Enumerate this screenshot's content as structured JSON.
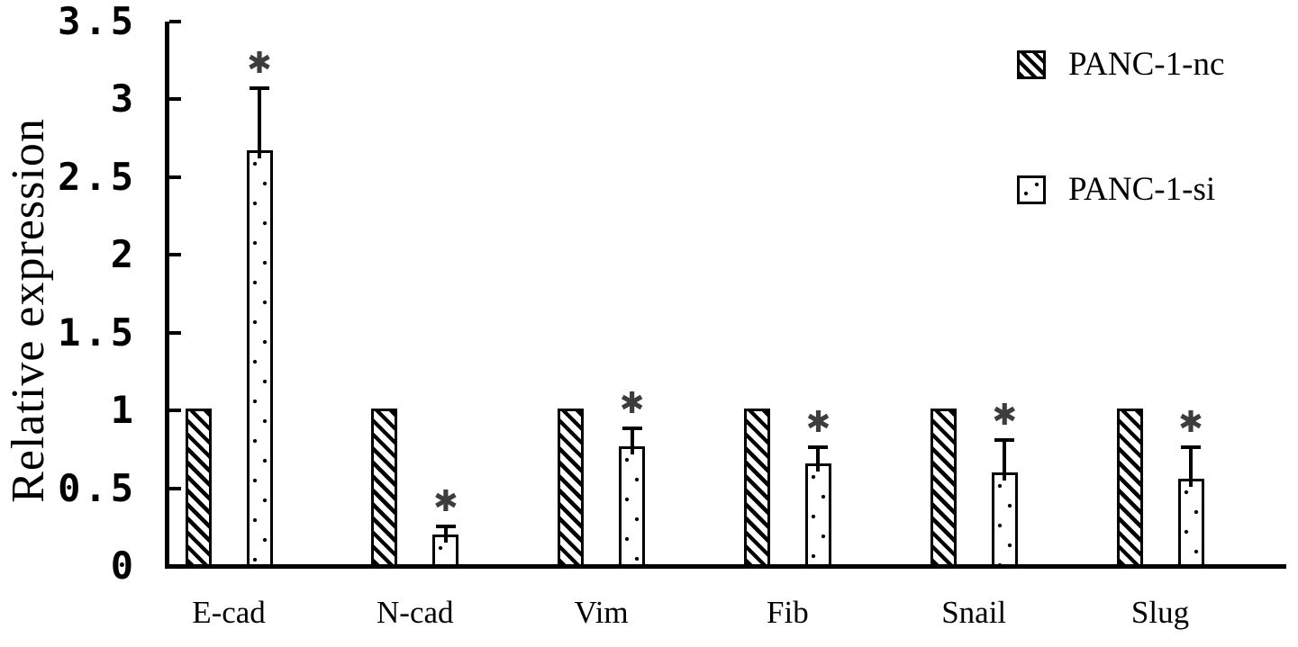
{
  "figure": {
    "title": "",
    "significance_marker": "✱"
  },
  "chart_data": {
    "type": "bar",
    "title": "",
    "xlabel": "",
    "ylabel": "Relative expression",
    "categories": [
      "E-cad",
      "N-cad",
      "Vim",
      "Fib",
      "Snail",
      "Slug"
    ],
    "series": [
      {
        "name": "PANC-1-nc",
        "pattern": "diagonal-hatch",
        "values": [
          1.0,
          1.0,
          1.0,
          1.0,
          1.0,
          1.0
        ]
      },
      {
        "name": "PANC-1-si",
        "pattern": "dots",
        "values": [
          2.66,
          0.19,
          0.76,
          0.65,
          0.59,
          0.55
        ],
        "error_plus": [
          0.4,
          0.05,
          0.11,
          0.1,
          0.21,
          0.2
        ],
        "significant": [
          true,
          true,
          true,
          true,
          true,
          true
        ]
      }
    ],
    "significance_marker": "✱",
    "ylim": [
      0,
      3.5
    ],
    "yticks": [
      0,
      0.5,
      1,
      1.5,
      2,
      2.5,
      3,
      3.5
    ],
    "grid": false,
    "legend_position": "top-right",
    "bar_fill": "#ffffff",
    "bar_edge_color": "#000000",
    "asterisk_color": "#3d3d3d"
  }
}
